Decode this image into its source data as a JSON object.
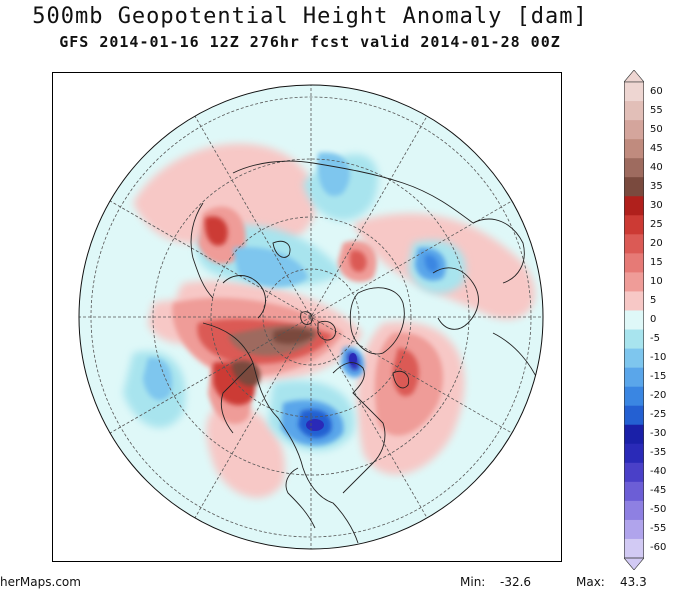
{
  "title": "500mb Geopotential Height Anomaly [dam]",
  "subtitle": "GFS 2014-01-16 12Z 276hr fcst valid 2014-01-28 00Z",
  "footer": {
    "credit": "herMaps.com",
    "min_label": "Min:",
    "min_value": "-32.6",
    "max_label": "Max:",
    "max_value": "43.3"
  },
  "colorbar": {
    "labels": [
      "60",
      "55",
      "50",
      "45",
      "40",
      "35",
      "30",
      "25",
      "20",
      "15",
      "10",
      "5",
      "0",
      "-5",
      "-10",
      "-15",
      "-20",
      "-25",
      "-30",
      "-35",
      "-40",
      "-45",
      "-50",
      "-55",
      "-60"
    ],
    "colors": [
      "#eed6d2",
      "#e2bfb8",
      "#d4a59c",
      "#c08b7e",
      "#9e6b5f",
      "#7a4a3e",
      "#b0201c",
      "#cc3a34",
      "#db5a55",
      "#e67a76",
      "#ef9c98",
      "#f7c8c6",
      "#dff8f8",
      "#a8e4ee",
      "#7ec6ee",
      "#5aa6ea",
      "#3a86e2",
      "#2460d2",
      "#1a20a8",
      "#2a2ab8",
      "#4a40c8",
      "#6c5ed6",
      "#8e80e2",
      "#b0a4ec",
      "#d2caf4"
    ]
  },
  "map": {
    "projection": "north-polar-stereographic",
    "background_color": "#dff8f8",
    "anomalies": [
      {
        "region": "eastern-pacific-alaska",
        "sign": "positive",
        "peak": 30
      },
      {
        "region": "western-canada",
        "sign": "positive",
        "peak": 43.3
      },
      {
        "region": "eastern-us",
        "sign": "negative",
        "peak": -32.6
      },
      {
        "region": "hudson-bay",
        "sign": "negative",
        "peak": -30
      },
      {
        "region": "north-atlantic",
        "sign": "positive",
        "peak": 20
      },
      {
        "region": "scandinavia",
        "sign": "positive",
        "peak": 15
      },
      {
        "region": "northeast-asia",
        "sign": "negative",
        "peak": -20
      },
      {
        "region": "siberia",
        "sign": "negative",
        "peak": -20
      },
      {
        "region": "northwest-pacific",
        "sign": "positive",
        "peak": 15
      }
    ]
  }
}
